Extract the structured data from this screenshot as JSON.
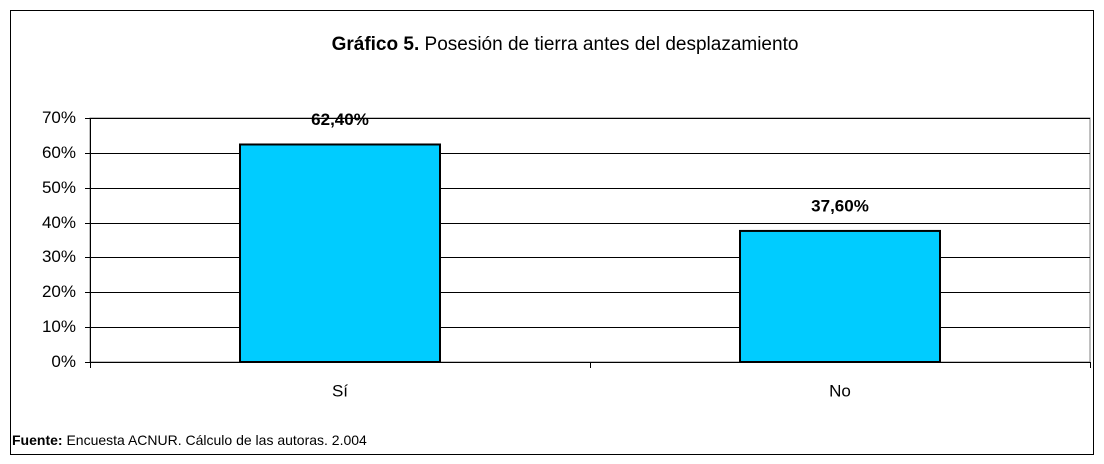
{
  "chart_data": {
    "type": "bar",
    "title": {
      "label": "Gráfico 5.",
      "text": "Posesión de tierra antes del desplazamiento"
    },
    "categories": [
      "Sí",
      "No"
    ],
    "values": [
      62.4,
      37.6
    ],
    "value_labels": [
      "62,40%",
      "37,60%"
    ],
    "color": "#00ccff",
    "ylim": [
      0,
      70
    ],
    "yticks": [
      {
        "value": 0,
        "label": "0%"
      },
      {
        "value": 10,
        "label": "10%"
      },
      {
        "value": 20,
        "label": "20%"
      },
      {
        "value": 30,
        "label": "30%"
      },
      {
        "value": 40,
        "label": "40%"
      },
      {
        "value": 50,
        "label": "50%"
      },
      {
        "value": 60,
        "label": "60%"
      },
      {
        "value": 70,
        "label": "70%"
      }
    ],
    "grid": true,
    "source": {
      "label": "Fuente:",
      "text": "Encuesta ACNUR. Cálculo de las autoras. 2.004"
    }
  }
}
